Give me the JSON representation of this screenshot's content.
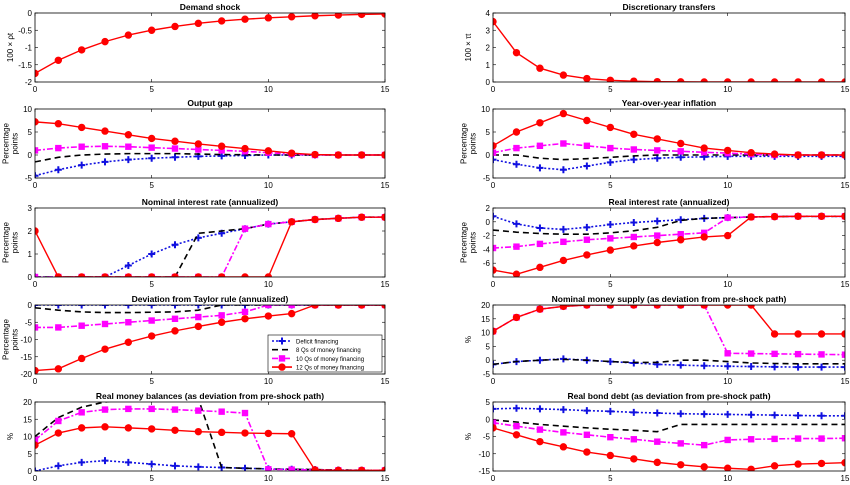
{
  "x_ticks": [
    0,
    5,
    10,
    15
  ],
  "series_styles": {
    "deficit": {
      "color": "#1010e0",
      "dash": "2,2",
      "marker": "plus"
    },
    "q8": {
      "color": "#000000",
      "dash": "6,4",
      "marker": "none"
    },
    "q10": {
      "color": "#ff00ff",
      "dash": "6,2,2,2",
      "marker": "square"
    },
    "q12": {
      "color": "#ff0000",
      "dash": "",
      "marker": "circle"
    }
  },
  "legend": {
    "entries": [
      {
        "key": "deficit",
        "label": "Deficit financing"
      },
      {
        "key": "q8",
        "label": "8 Qs of money financing"
      },
      {
        "key": "q10",
        "label": "10 Qs of money financing"
      },
      {
        "key": "q12",
        "label": "12 Qs of money financing"
      }
    ]
  },
  "chart_data": [
    {
      "type": "line",
      "title": "Demand shock",
      "ylabel": [
        "100 × ρt"
      ],
      "ylim": [
        -2,
        0
      ],
      "yticks": [
        -2,
        -1.5,
        -1,
        -0.5,
        0
      ],
      "xlim": [
        0,
        15
      ],
      "x": [
        0,
        1,
        2,
        3,
        4,
        5,
        6,
        7,
        8,
        9,
        10,
        11,
        12,
        13,
        14,
        15
      ],
      "series": [
        {
          "key": "q12",
          "values": [
            -1.75,
            -1.37,
            -1.07,
            -0.83,
            -0.64,
            -0.5,
            -0.39,
            -0.3,
            -0.23,
            -0.18,
            -0.14,
            -0.11,
            -0.08,
            -0.06,
            -0.04,
            -0.03
          ]
        }
      ]
    },
    {
      "type": "line",
      "title": "Discretionary transfers",
      "ylabel": [
        "100 × τt"
      ],
      "ylim": [
        0,
        4
      ],
      "yticks": [
        0,
        1,
        2,
        3,
        4
      ],
      "xlim": [
        0,
        15
      ],
      "x": [
        0,
        1,
        2,
        3,
        4,
        5,
        6,
        7,
        8,
        9,
        10,
        11,
        12,
        13,
        14,
        15
      ],
      "series": [
        {
          "key": "q12",
          "values": [
            3.5,
            1.7,
            0.8,
            0.4,
            0.2,
            0.1,
            0.05,
            0.02,
            0.01,
            0,
            0,
            0,
            0,
            0,
            0,
            0
          ]
        }
      ]
    },
    {
      "type": "line",
      "title": "Output gap",
      "ylabel": [
        "Percentage",
        "points"
      ],
      "ylim": [
        -5,
        10
      ],
      "yticks": [
        -5,
        0,
        5,
        10
      ],
      "xlim": [
        0,
        15
      ],
      "x": [
        0,
        1,
        2,
        3,
        4,
        5,
        6,
        7,
        8,
        9,
        10,
        11,
        12,
        13,
        14,
        15
      ],
      "series": [
        {
          "key": "deficit",
          "values": [
            -4.5,
            -3.2,
            -2.2,
            -1.5,
            -1.0,
            -0.7,
            -0.5,
            -0.3,
            -0.2,
            -0.1,
            0,
            0,
            0,
            0,
            0,
            0
          ]
        },
        {
          "key": "q8",
          "values": [
            -1.5,
            -0.5,
            0,
            0.2,
            0.3,
            0.3,
            0.3,
            0.2,
            0.1,
            0.05,
            0,
            0,
            0,
            0,
            0,
            0
          ]
        },
        {
          "key": "q10",
          "values": [
            1.0,
            1.5,
            1.8,
            1.9,
            1.8,
            1.6,
            1.4,
            1.2,
            1.0,
            0.8,
            0.5,
            0.2,
            0,
            0,
            0,
            0
          ]
        },
        {
          "key": "q12",
          "values": [
            7.2,
            6.8,
            6.0,
            5.2,
            4.4,
            3.6,
            3.0,
            2.4,
            1.9,
            1.4,
            0.9,
            0.4,
            0.1,
            0,
            0,
            0
          ]
        }
      ]
    },
    {
      "type": "line",
      "title": "Year-over-year inflation",
      "ylabel": [
        "Percentage",
        "points"
      ],
      "ylim": [
        -5,
        10
      ],
      "yticks": [
        -5,
        0,
        5,
        10
      ],
      "xlim": [
        0,
        15
      ],
      "x": [
        0,
        1,
        2,
        3,
        4,
        5,
        6,
        7,
        8,
        9,
        10,
        11,
        12,
        13,
        14,
        15
      ],
      "series": [
        {
          "key": "deficit",
          "values": [
            -1.0,
            -2.0,
            -2.8,
            -3.2,
            -2.4,
            -1.6,
            -1.0,
            -0.7,
            -0.5,
            -0.4,
            -0.3,
            -0.3,
            -0.3,
            -0.3,
            -0.3,
            -0.3
          ]
        },
        {
          "key": "q8",
          "values": [
            0,
            0,
            -0.7,
            -1.0,
            -0.8,
            -0.5,
            -0.2,
            0,
            0,
            0,
            0,
            0,
            0,
            0,
            0,
            0
          ]
        },
        {
          "key": "q10",
          "values": [
            0.5,
            1.5,
            2.0,
            2.5,
            2.0,
            1.5,
            1.2,
            1.0,
            0.8,
            0.6,
            0.4,
            0.2,
            0,
            0,
            0,
            0
          ]
        },
        {
          "key": "q12",
          "values": [
            2.0,
            5.0,
            7.0,
            9.0,
            7.5,
            6.0,
            4.5,
            3.5,
            2.5,
            1.5,
            1.0,
            0.5,
            0.2,
            0,
            0,
            0
          ]
        }
      ]
    },
    {
      "type": "line",
      "title": "Nominal interest rate (annualized)",
      "ylabel": [
        "Percentage",
        "points"
      ],
      "ylim": [
        0,
        3
      ],
      "yticks": [
        0,
        1,
        2,
        3
      ],
      "xlim": [
        0,
        15
      ],
      "x": [
        0,
        1,
        2,
        3,
        4,
        5,
        6,
        7,
        8,
        9,
        10,
        11,
        12,
        13,
        14,
        15
      ],
      "series": [
        {
          "key": "deficit",
          "values": [
            0,
            0,
            0,
            0,
            0.5,
            1.0,
            1.4,
            1.7,
            1.9,
            2.1,
            2.3,
            2.4,
            2.5,
            2.55,
            2.6,
            2.6
          ]
        },
        {
          "key": "q8",
          "values": [
            0,
            0,
            0,
            0,
            0,
            0,
            0,
            1.9,
            2.0,
            2.1,
            2.3,
            2.4,
            2.5,
            2.55,
            2.6,
            2.6
          ]
        },
        {
          "key": "q10",
          "values": [
            0,
            0,
            0,
            0,
            0,
            0,
            0,
            0,
            0,
            2.1,
            2.3,
            2.4,
            2.5,
            2.55,
            2.6,
            2.6
          ]
        },
        {
          "key": "q12",
          "values": [
            2.0,
            0,
            0,
            0,
            0,
            0,
            0,
            0,
            0,
            0,
            0,
            2.4,
            2.5,
            2.55,
            2.6,
            2.6
          ]
        }
      ]
    },
    {
      "type": "line",
      "title": "Real interest rate (annualized)",
      "ylabel": [
        "Percentage",
        "points"
      ],
      "ylim": [
        -8,
        2
      ],
      "yticks": [
        -6,
        -4,
        -2,
        0,
        2
      ],
      "xlim": [
        0,
        15
      ],
      "x": [
        0,
        1,
        2,
        3,
        4,
        5,
        6,
        7,
        8,
        9,
        10,
        11,
        12,
        13,
        14,
        15
      ],
      "series": [
        {
          "key": "deficit",
          "values": [
            0.8,
            -0.3,
            -0.9,
            -1.1,
            -0.8,
            -0.4,
            -0.1,
            0.1,
            0.3,
            0.5,
            0.6,
            0.7,
            0.75,
            0.8,
            0.8,
            0.8
          ]
        },
        {
          "key": "q8",
          "values": [
            -1.2,
            -1.5,
            -1.7,
            -1.8,
            -1.8,
            -1.6,
            -1.3,
            -0.8,
            0.2,
            0.5,
            0.6,
            0.7,
            0.75,
            0.8,
            0.8,
            0.8
          ]
        },
        {
          "key": "q10",
          "values": [
            -3.8,
            -3.6,
            -3.2,
            -2.9,
            -2.6,
            -2.4,
            -2.2,
            -2.0,
            -1.8,
            -1.6,
            0.6,
            0.7,
            0.75,
            0.8,
            0.8,
            0.8
          ]
        },
        {
          "key": "q12",
          "values": [
            -7.0,
            -7.6,
            -6.6,
            -5.6,
            -4.8,
            -4.1,
            -3.5,
            -3.0,
            -2.6,
            -2.2,
            -2.0,
            0.7,
            0.75,
            0.8,
            0.8,
            0.8
          ]
        }
      ]
    },
    {
      "type": "line",
      "title": "Deviation from Taylor rule (annualized)",
      "ylabel": [
        "Percentage",
        "points"
      ],
      "ylim": [
        -20,
        0
      ],
      "yticks": [
        -20,
        -15,
        -10,
        -5,
        0
      ],
      "xlim": [
        0,
        15
      ],
      "x": [
        0,
        1,
        2,
        3,
        4,
        5,
        6,
        7,
        8,
        9,
        10,
        11,
        12,
        13,
        14,
        15
      ],
      "series": [
        {
          "key": "deficit",
          "values": [
            0,
            0,
            0,
            0,
            0,
            0,
            0,
            0,
            0,
            0,
            0,
            0,
            0,
            0,
            0,
            0
          ]
        },
        {
          "key": "q8",
          "values": [
            -0.8,
            -1.5,
            -2.0,
            -2.2,
            -2.2,
            -2.1,
            -2.0,
            -1.5,
            0,
            0,
            0,
            0,
            0,
            0,
            0,
            0
          ]
        },
        {
          "key": "q10",
          "values": [
            -6.5,
            -6.5,
            -6.0,
            -5.5,
            -5.0,
            -4.5,
            -4.0,
            -3.5,
            -3.0,
            -2.0,
            0,
            0,
            0,
            0,
            0,
            0
          ]
        },
        {
          "key": "q12",
          "values": [
            -19.0,
            -18.5,
            -15.5,
            -12.8,
            -10.8,
            -9.0,
            -7.5,
            -6.2,
            -5.0,
            -4.0,
            -3.2,
            -2.5,
            0,
            0,
            0,
            0
          ]
        }
      ]
    },
    {
      "type": "line",
      "title": "Nominal money supply (as deviation from pre-shock path)",
      "ylabel": [
        "%"
      ],
      "ylim": [
        -5,
        20
      ],
      "yticks": [
        -5,
        0,
        5,
        10,
        15,
        20
      ],
      "xlim": [
        0,
        15
      ],
      "x": [
        0,
        1,
        2,
        3,
        4,
        5,
        6,
        7,
        8,
        9,
        10,
        11,
        12,
        13,
        14,
        15
      ],
      "series": [
        {
          "key": "deficit",
          "values": [
            -1.5,
            -0.5,
            0,
            0.5,
            0,
            -0.5,
            -1.0,
            -1.5,
            -1.8,
            -2.0,
            -2.2,
            -2.3,
            -2.4,
            -2.5,
            -2.5,
            -2.5
          ]
        },
        {
          "key": "q8",
          "values": [
            -1.5,
            -0.5,
            0,
            0.3,
            0,
            -0.5,
            -0.8,
            -0.8,
            0,
            0,
            -0.5,
            -1.0,
            -1.2,
            -1.3,
            -1.3,
            -1.3
          ]
        },
        {
          "key": "q10",
          "values": [
            10.5,
            15.5,
            18.5,
            19.5,
            20,
            20,
            20,
            20,
            20,
            20,
            2.5,
            2.4,
            2.3,
            2.2,
            2.1,
            2.0
          ]
        },
        {
          "key": "q12",
          "values": [
            10.5,
            15.5,
            18.5,
            19.5,
            20,
            20,
            20,
            20,
            20,
            20,
            20,
            20,
            9.5,
            9.5,
            9.5,
            9.5
          ]
        }
      ]
    },
    {
      "type": "line",
      "title": "Real money balances (as deviation from pre-shock path)",
      "ylabel": [
        "%"
      ],
      "ylim": [
        0,
        20
      ],
      "yticks": [
        0,
        5,
        10,
        15,
        20
      ],
      "xlim": [
        0,
        15
      ],
      "x": [
        0,
        1,
        2,
        3,
        4,
        5,
        6,
        7,
        8,
        9,
        10,
        11,
        12,
        13,
        14,
        15
      ],
      "series": [
        {
          "key": "deficit",
          "values": [
            0,
            1.5,
            2.5,
            3.0,
            2.5,
            2.0,
            1.5,
            1.2,
            1.0,
            0.8,
            0.6,
            0.5,
            0.4,
            0.3,
            0.2,
            0.2
          ]
        },
        {
          "key": "q8",
          "values": [
            10,
            15.5,
            18.5,
            20,
            21,
            21,
            21,
            21,
            1.0,
            0.8,
            0.6,
            0.5,
            0.4,
            0.3,
            0.2,
            0.2
          ]
        },
        {
          "key": "q10",
          "values": [
            9,
            14.5,
            17,
            17.8,
            18,
            18,
            17.8,
            17.5,
            17.2,
            16.8,
            0.5,
            0.4,
            0.3,
            0.2,
            0.2,
            0.2
          ]
        },
        {
          "key": "q12",
          "values": [
            7.5,
            11,
            12.5,
            12.8,
            12.5,
            12.2,
            11.8,
            11.4,
            11.2,
            11.0,
            10.9,
            10.8,
            0.3,
            0.2,
            0.2,
            0.2
          ]
        }
      ]
    },
    {
      "type": "line",
      "title": "Real bond debt (as deviation from pre-shock path)",
      "ylabel": [
        "%"
      ],
      "ylim": [
        -15,
        5
      ],
      "yticks": [
        -15,
        -10,
        -5,
        0,
        5
      ],
      "xlim": [
        0,
        15
      ],
      "x": [
        0,
        1,
        2,
        3,
        4,
        5,
        6,
        7,
        8,
        9,
        10,
        11,
        12,
        13,
        14,
        15
      ],
      "series": [
        {
          "key": "deficit",
          "values": [
            3.0,
            3.2,
            3.0,
            2.8,
            2.5,
            2.3,
            2.0,
            1.8,
            1.6,
            1.5,
            1.4,
            1.3,
            1.2,
            1.1,
            1.0,
            1.0
          ]
        },
        {
          "key": "q8",
          "values": [
            -0.2,
            -0.8,
            -1.5,
            -2.0,
            -2.5,
            -2.9,
            -3.2,
            -3.6,
            -1.5,
            -1.5,
            -1.5,
            -1.5,
            -1.5,
            -1.5,
            -1.5,
            -1.5
          ]
        },
        {
          "key": "q10",
          "values": [
            -1.0,
            -2.0,
            -3.0,
            -3.8,
            -4.5,
            -5.2,
            -5.8,
            -6.5,
            -7.0,
            -7.5,
            -6.0,
            -5.8,
            -5.7,
            -5.6,
            -5.6,
            -5.5
          ]
        },
        {
          "key": "q12",
          "values": [
            -2.5,
            -4.5,
            -6.5,
            -8.0,
            -9.5,
            -10.5,
            -11.5,
            -12.5,
            -13.2,
            -13.8,
            -14.2,
            -14.5,
            -13.5,
            -13.0,
            -12.8,
            -12.6
          ]
        }
      ]
    }
  ]
}
